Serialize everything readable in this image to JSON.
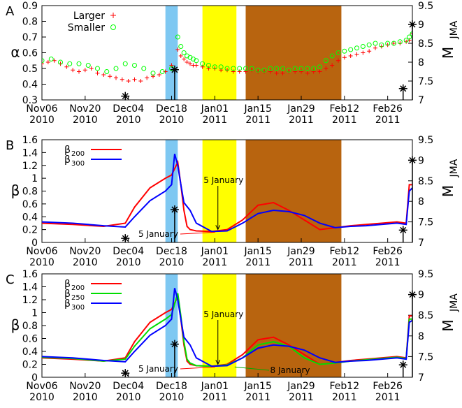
{
  "figure": {
    "width": 661,
    "height": 579
  },
  "chart_data": [
    {
      "panel": "A",
      "type": "scatter",
      "title": "",
      "ylabel": "α",
      "y2label": "M",
      "y2label_sub": "JMA",
      "x": [
        "Nov06\n2010",
        "Nov20\n2010",
        "Dec04\n2010",
        "Dec18\n2010",
        "Jan01\n2011",
        "Jan15\n2011",
        "Jan29\n2011",
        "Feb12\n2011",
        "Feb26\n2011"
      ],
      "ylim": [
        0.3,
        0.9
      ],
      "yticks": [
        "0.3",
        "0.4",
        "0.5",
        "0.6",
        "0.7",
        "0.8",
        "0.9"
      ],
      "y2lim": [
        7,
        9.5
      ],
      "y2ticks": [
        "7",
        "7.5",
        "8",
        "8.5",
        "9",
        "9.5"
      ],
      "legend": {
        "placement": "top-left",
        "entries": [
          "Larger",
          "Smaller"
        ]
      },
      "series": [
        {
          "name": "Larger",
          "color": "#ff0000",
          "marker": "plus",
          "x": [
            0,
            2,
            4,
            6,
            8,
            10,
            12,
            14,
            16,
            18,
            20,
            22,
            24,
            26,
            28,
            30,
            32,
            34,
            36,
            38,
            40,
            42,
            44,
            45,
            46,
            47,
            48,
            49,
            50,
            52,
            54,
            56,
            58,
            60,
            62,
            64,
            66,
            68,
            70,
            72,
            74,
            76,
            78,
            80,
            82,
            84,
            86,
            88,
            90,
            92,
            94,
            96,
            98,
            100,
            102,
            104,
            106,
            108,
            110,
            112,
            114,
            116,
            118,
            119,
            120
          ],
          "y": [
            0.53,
            0.54,
            0.55,
            0.53,
            0.51,
            0.49,
            0.48,
            0.49,
            0.5,
            0.47,
            0.46,
            0.45,
            0.44,
            0.43,
            0.42,
            0.43,
            0.42,
            0.44,
            0.45,
            0.46,
            0.48,
            0.52,
            0.62,
            0.58,
            0.56,
            0.54,
            0.53,
            0.52,
            0.52,
            0.51,
            0.5,
            0.5,
            0.49,
            0.49,
            0.48,
            0.48,
            0.48,
            0.49,
            0.48,
            0.48,
            0.48,
            0.47,
            0.47,
            0.48,
            0.48,
            0.48,
            0.47,
            0.48,
            0.48,
            0.5,
            0.52,
            0.55,
            0.57,
            0.58,
            0.59,
            0.6,
            0.61,
            0.63,
            0.64,
            0.65,
            0.66,
            0.66,
            0.67,
            0.68,
            0.72
          ]
        },
        {
          "name": "Smaller",
          "color": "#00ff00",
          "marker": "circle",
          "x": [
            0,
            3,
            6,
            9,
            12,
            15,
            18,
            21,
            24,
            27,
            30,
            33,
            36,
            39,
            42,
            44,
            45,
            46,
            47,
            48,
            49,
            50,
            52,
            54,
            56,
            58,
            60,
            62,
            64,
            66,
            68,
            70,
            72,
            74,
            76,
            78,
            80,
            82,
            84,
            86,
            88,
            90,
            92,
            94,
            96,
            98,
            100,
            102,
            104,
            106,
            108,
            110,
            112,
            114,
            116,
            118,
            119,
            120
          ],
          "y": [
            0.55,
            0.56,
            0.54,
            0.53,
            0.53,
            0.52,
            0.5,
            0.48,
            0.5,
            0.53,
            0.52,
            0.5,
            0.47,
            0.48,
            0.5,
            0.7,
            0.64,
            0.6,
            0.58,
            0.57,
            0.56,
            0.55,
            0.53,
            0.52,
            0.51,
            0.51,
            0.5,
            0.5,
            0.5,
            0.5,
            0.5,
            0.49,
            0.49,
            0.5,
            0.5,
            0.5,
            0.49,
            0.5,
            0.5,
            0.5,
            0.5,
            0.51,
            0.55,
            0.58,
            0.6,
            0.61,
            0.62,
            0.63,
            0.64,
            0.65,
            0.66,
            0.65,
            0.66,
            0.66,
            0.67,
            0.68,
            0.7,
            0.72
          ]
        }
      ],
      "earthquakes": [
        {
          "day": 27,
          "magnitude": 7.1
        },
        {
          "day": 43,
          "magnitude": 7.8
        },
        {
          "day": 117,
          "magnitude": 7.3
        },
        {
          "day": 120,
          "magnitude": 9.0
        }
      ]
    },
    {
      "panel": "B",
      "type": "line",
      "title": "",
      "ylabel": "β",
      "y2label": "M",
      "y2label_sub": "JMA",
      "x": [
        "Nov06\n2010",
        "Nov20\n2010",
        "Dec04\n2010",
        "Dec18\n2010",
        "Jan01\n2011",
        "Jan15\n2011",
        "Jan29\n2011",
        "Feb12\n2011",
        "Feb26\n2011"
      ],
      "ylim": [
        0,
        1.6
      ],
      "yticks": [
        "0",
        "0.2",
        "0.4",
        "0.6",
        "0.8",
        "1",
        "1.2",
        "1.4",
        "1.6"
      ],
      "y2lim": [
        7,
        9.5
      ],
      "y2ticks": [
        "7",
        "7.5",
        "8",
        "8.5",
        "9",
        "9.5"
      ],
      "legend": {
        "placement": "top-left",
        "entries": [
          {
            "base": "β",
            "sub": "200"
          },
          {
            "base": "β",
            "sub": "300"
          }
        ]
      },
      "series": [
        {
          "name": "β200",
          "color": "#ff0000",
          "x": [
            0,
            10,
            20,
            27,
            30,
            35,
            40,
            42,
            44,
            45,
            46,
            47,
            48,
            50,
            55,
            60,
            65,
            70,
            75,
            80,
            85,
            90,
            95,
            100,
            105,
            110,
            115,
            118,
            119,
            120
          ],
          "y": [
            0.3,
            0.28,
            0.25,
            0.3,
            0.55,
            0.85,
            1.0,
            1.05,
            1.25,
            0.9,
            0.5,
            0.25,
            0.2,
            0.18,
            0.17,
            0.2,
            0.35,
            0.58,
            0.62,
            0.5,
            0.35,
            0.2,
            0.23,
            0.26,
            0.28,
            0.3,
            0.32,
            0.3,
            0.9,
            0.9
          ]
        },
        {
          "name": "β300",
          "color": "#0000ff",
          "x": [
            0,
            10,
            20,
            27,
            30,
            35,
            40,
            42,
            43,
            44,
            45,
            46,
            48,
            50,
            55,
            60,
            65,
            70,
            75,
            80,
            85,
            90,
            95,
            100,
            105,
            110,
            115,
            118,
            119,
            120
          ],
          "y": [
            0.32,
            0.3,
            0.26,
            0.24,
            0.4,
            0.65,
            0.8,
            0.9,
            1.38,
            1.2,
            0.9,
            0.62,
            0.5,
            0.3,
            0.17,
            0.18,
            0.3,
            0.45,
            0.5,
            0.48,
            0.42,
            0.3,
            0.23,
            0.25,
            0.26,
            0.28,
            0.3,
            0.28,
            0.8,
            0.85
          ]
        }
      ],
      "annotations": [
        {
          "text": "5 January",
          "color": "#0000aa",
          "day": 57,
          "y": 0.17
        },
        {
          "text": "5 January",
          "color": "#ff0000",
          "day": 57,
          "y": 0.17
        }
      ],
      "earthquakes": [
        {
          "day": 27,
          "magnitude": 7.1
        },
        {
          "day": 43,
          "magnitude": 7.8
        },
        {
          "day": 117,
          "magnitude": 7.3
        },
        {
          "day": 120,
          "magnitude": 9.0
        }
      ]
    },
    {
      "panel": "C",
      "type": "line",
      "title": "",
      "ylabel": "β",
      "y2label": "M",
      "y2label_sub": "JMA",
      "x": [
        "Nov06\n2010",
        "Nov20\n2010",
        "Dec04\n2010",
        "Dec18\n2010",
        "Jan01\n2011",
        "Jan15\n2011",
        "Jan29\n2011",
        "Feb12\n2011",
        "Feb26\n2011"
      ],
      "ylim": [
        0,
        1.6
      ],
      "yticks": [
        "0",
        "0.2",
        "0.4",
        "0.6",
        "0.8",
        "1",
        "1.2",
        "1.4",
        "1.6"
      ],
      "y2lim": [
        7,
        9.5
      ],
      "y2ticks": [
        "7",
        "7.5",
        "8",
        "8.5",
        "9",
        "9.5"
      ],
      "legend": {
        "placement": "top-left",
        "entries": [
          {
            "base": "β",
            "sub": "200"
          },
          {
            "base": "β",
            "sub": "250"
          },
          {
            "base": "β",
            "sub": "300"
          }
        ]
      },
      "series": [
        {
          "name": "β200",
          "color": "#ff0000",
          "x": [
            0,
            10,
            20,
            27,
            30,
            35,
            40,
            42,
            44,
            45,
            46,
            47,
            48,
            50,
            55,
            60,
            65,
            70,
            75,
            80,
            85,
            90,
            95,
            100,
            105,
            110,
            115,
            118,
            119,
            120
          ],
          "y": [
            0.3,
            0.28,
            0.25,
            0.3,
            0.55,
            0.85,
            1.0,
            1.05,
            1.25,
            0.9,
            0.5,
            0.25,
            0.2,
            0.18,
            0.17,
            0.2,
            0.35,
            0.58,
            0.62,
            0.5,
            0.35,
            0.2,
            0.23,
            0.26,
            0.28,
            0.3,
            0.32,
            0.3,
            0.95,
            0.95
          ]
        },
        {
          "name": "β250",
          "color": "#00dd00",
          "x": [
            0,
            10,
            20,
            27,
            30,
            35,
            40,
            42,
            44,
            45,
            46,
            47,
            48,
            50,
            55,
            60,
            65,
            70,
            75,
            80,
            85,
            90,
            95,
            100,
            105,
            110,
            115,
            118,
            119,
            120
          ],
          "y": [
            0.31,
            0.29,
            0.25,
            0.28,
            0.48,
            0.75,
            0.9,
            0.97,
            1.3,
            0.95,
            0.55,
            0.28,
            0.22,
            0.18,
            0.17,
            0.19,
            0.3,
            0.5,
            0.55,
            0.48,
            0.3,
            0.2,
            0.22,
            0.25,
            0.27,
            0.29,
            0.31,
            0.29,
            0.9,
            0.9
          ]
        },
        {
          "name": "β300",
          "color": "#0000ff",
          "x": [
            0,
            10,
            20,
            27,
            30,
            35,
            40,
            42,
            43,
            44,
            45,
            46,
            48,
            50,
            55,
            60,
            65,
            70,
            75,
            80,
            85,
            90,
            95,
            100,
            105,
            110,
            115,
            118,
            119,
            120
          ],
          "y": [
            0.32,
            0.3,
            0.26,
            0.24,
            0.4,
            0.65,
            0.8,
            0.9,
            1.38,
            1.2,
            0.9,
            0.62,
            0.5,
            0.3,
            0.17,
            0.18,
            0.3,
            0.45,
            0.5,
            0.48,
            0.42,
            0.3,
            0.23,
            0.25,
            0.26,
            0.28,
            0.3,
            0.28,
            0.85,
            0.88
          ]
        }
      ],
      "annotations": [
        {
          "text": "5 January",
          "color": "#0000aa",
          "day": 57,
          "y": 0.17
        },
        {
          "text": "5 January",
          "color": "#ff0000",
          "day": 57,
          "y": 0.17
        },
        {
          "text": "8 January",
          "color": "#00aa00",
          "day": 62,
          "y": 0.17
        }
      ],
      "earthquakes": [
        {
          "day": 27,
          "magnitude": 7.1
        },
        {
          "day": 43,
          "magnitude": 7.8
        },
        {
          "day": 117,
          "magnitude": 7.3
        },
        {
          "day": 120,
          "magnitude": 9.0
        }
      ]
    }
  ],
  "bands": [
    {
      "color": "#7ec8f2",
      "start_day": 40,
      "end_day": 44
    },
    {
      "color": "#ffff00",
      "start_day": 52,
      "end_day": 63
    },
    {
      "color": "#b8640f",
      "start_day": 66,
      "end_day": 97
    }
  ],
  "panel_letters": [
    "A",
    "B",
    "C"
  ]
}
